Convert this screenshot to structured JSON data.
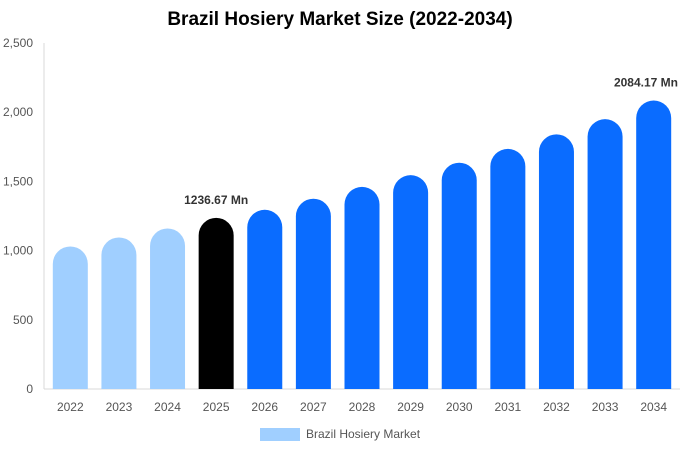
{
  "colors": {
    "historical": "#a0cfff",
    "current": "#000000",
    "forecast": "#0a6cff",
    "axis": "#d8d8d8",
    "text": "#555555"
  },
  "chart_data": {
    "type": "bar",
    "title": "Brazil Hosiery Market Size (2022-2034)",
    "xlabel": "",
    "ylabel": "",
    "categories": [
      "2022",
      "2023",
      "2024",
      "2025",
      "2026",
      "2027",
      "2028",
      "2029",
      "2030",
      "2031",
      "2032",
      "2033",
      "2034"
    ],
    "series": [
      {
        "name": "Brazil Hosiery Market",
        "values": [
          1030,
          1095,
          1160,
          1236.67,
          1295,
          1375,
          1460,
          1545,
          1635,
          1735,
          1840,
          1950,
          2084.17
        ]
      }
    ],
    "bar_kinds": [
      "historical",
      "historical",
      "historical",
      "current",
      "forecast",
      "forecast",
      "forecast",
      "forecast",
      "forecast",
      "forecast",
      "forecast",
      "forecast",
      "forecast"
    ],
    "ylim": [
      0,
      2500
    ],
    "yticks": [
      0,
      500,
      1000,
      1500,
      2000,
      2500
    ],
    "ytick_labels": [
      "0",
      "500",
      "1,000",
      "1,500",
      "2,000",
      "2,500"
    ],
    "annotations": [
      {
        "category": "2025",
        "text": "1236.67 Mn"
      },
      {
        "category": "2034",
        "text": "2084.17 Mn"
      }
    ],
    "legend": {
      "position": "bottom-center",
      "label": "Brazil Hosiery Market"
    },
    "grid": false
  }
}
